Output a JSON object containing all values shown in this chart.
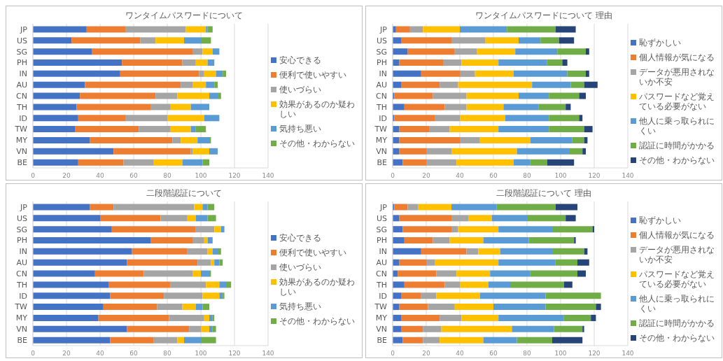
{
  "chart_data": [
    {
      "type": "bar",
      "orientation": "horizontal",
      "stacked": true,
      "title": "ワンタイムパスワードについて",
      "categories": [
        "JP",
        "US",
        "SG",
        "PH",
        "IN",
        "AU",
        "CN",
        "TH",
        "ID",
        "TW",
        "MY",
        "VN",
        "BE"
      ],
      "xlim": [
        0,
        140
      ],
      "xticks": [
        0,
        20,
        40,
        60,
        80,
        100,
        120,
        140
      ],
      "grid": "x",
      "legend": "right",
      "series": [
        {
          "name": "安心できる",
          "color": "#4472c4",
          "values": [
            32,
            23,
            35,
            53,
            52,
            31,
            28,
            26,
            27,
            25,
            34,
            48,
            27
          ]
        },
        {
          "name": "便利で使いやすい",
          "color": "#ed7d31",
          "values": [
            23,
            41,
            60,
            36,
            47,
            57,
            45,
            44,
            28,
            38,
            49,
            46,
            27
          ]
        },
        {
          "name": "使いづらい",
          "color": "#a5a5a5",
          "values": [
            36,
            9,
            6,
            8,
            3,
            7,
            13,
            12,
            25,
            19,
            5,
            1,
            18
          ]
        },
        {
          "name": "効果があるのか疑わしい",
          "color": "#ffc000",
          "values": [
            12,
            17,
            6,
            7,
            7,
            8,
            19,
            12,
            22,
            12,
            10,
            10,
            17
          ]
        },
        {
          "name": "気持ち悪い",
          "color": "#5b9bd5",
          "values": [
            1,
            10,
            4,
            4,
            4,
            5,
            5,
            11,
            9,
            3,
            7,
            5,
            12
          ]
        },
        {
          "name": "その他・わからない",
          "color": "#70ad47",
          "values": [
            3,
            6,
            0,
            0,
            2,
            2,
            2,
            0,
            0,
            6,
            1,
            0,
            4
          ]
        }
      ]
    },
    {
      "type": "bar",
      "orientation": "horizontal",
      "stacked": true,
      "title": "ワンタイムパスワードについて  理由",
      "categories": [
        "JP",
        "US",
        "SG",
        "PH",
        "IN",
        "AU",
        "CN",
        "TH",
        "ID",
        "TW",
        "MY",
        "VN",
        "BE"
      ],
      "xlim": [
        0,
        140
      ],
      "xticks": [
        0,
        20,
        40,
        60,
        80,
        100,
        120,
        140
      ],
      "grid": "x",
      "legend": "right",
      "series": [
        {
          "name": "恥ずかしい",
          "color": "#4472c4",
          "values": [
            2,
            5,
            9,
            4,
            17,
            5,
            1,
            7,
            1,
            4,
            4,
            4,
            6
          ]
        },
        {
          "name": "個人情報が気になる",
          "color": "#ed7d31",
          "values": [
            8,
            30,
            28,
            26,
            23,
            23,
            23,
            24,
            24,
            18,
            36,
            16,
            14
          ]
        },
        {
          "name": "データが悪用されないか不安",
          "color": "#a5a5a5",
          "values": [
            8,
            20,
            13,
            11,
            9,
            11,
            20,
            13,
            15,
            12,
            12,
            15,
            18
          ]
        },
        {
          "name": "パスワードなど覚えている必要がない",
          "color": "#ffc000",
          "values": [
            22,
            20,
            23,
            22,
            23,
            44,
            31,
            22,
            27,
            29,
            30,
            39,
            34
          ]
        },
        {
          "name": "他人に乗っ取られにくい",
          "color": "#5b9bd5",
          "values": [
            28,
            13,
            25,
            29,
            32,
            23,
            18,
            21,
            26,
            30,
            25,
            31,
            10
          ]
        },
        {
          "name": "認証に時間がかかる",
          "color": "#70ad47",
          "values": [
            29,
            11,
            17,
            9,
            11,
            8,
            18,
            16,
            18,
            21,
            7,
            8,
            10
          ]
        },
        {
          "name": "その他・わからない",
          "color": "#264478",
          "values": [
            12,
            9,
            2,
            3,
            2,
            8,
            4,
            3,
            2,
            5,
            2,
            2,
            16
          ]
        }
      ]
    },
    {
      "type": "bar",
      "orientation": "horizontal",
      "stacked": true,
      "title": "二段階認証について",
      "categories": [
        "JP",
        "US",
        "SG",
        "PH",
        "IN",
        "AU",
        "CN",
        "TH",
        "ID",
        "TW",
        "MY",
        "VN",
        "BE"
      ],
      "xlim": [
        0,
        140
      ],
      "xticks": [
        0,
        20,
        40,
        60,
        80,
        100,
        120,
        140
      ],
      "grid": "x",
      "legend": "right",
      "series": [
        {
          "name": "安心できる",
          "color": "#4472c4",
          "values": [
            34,
            40,
            47,
            70,
            59,
            56,
            37,
            45,
            46,
            42,
            39,
            56,
            46
          ]
        },
        {
          "name": "便利で使いやすい",
          "color": "#ed7d31",
          "values": [
            14,
            36,
            50,
            25,
            33,
            42,
            29,
            37,
            32,
            32,
            42,
            37,
            26
          ]
        },
        {
          "name": "使いづらい",
          "color": "#a5a5a5",
          "values": [
            48,
            16,
            11,
            7,
            12,
            8,
            29,
            21,
            23,
            15,
            21,
            7,
            14
          ]
        },
        {
          "name": "効果があるのか疑わしい",
          "color": "#ffc000",
          "values": [
            5,
            5,
            4,
            2,
            3,
            2,
            5,
            8,
            10,
            8,
            3,
            5,
            4
          ]
        },
        {
          "name": "気持ち悪い",
          "color": "#5b9bd5",
          "values": [
            3,
            7,
            2,
            3,
            3,
            3,
            5,
            4,
            2,
            4,
            2,
            2,
            10
          ]
        },
        {
          "name": "その他・わからない",
          "color": "#70ad47",
          "values": [
            4,
            5,
            0,
            0,
            2,
            2,
            1,
            3,
            1,
            4,
            1,
            2,
            9
          ]
        }
      ]
    },
    {
      "type": "bar",
      "orientation": "horizontal",
      "stacked": true,
      "title": "二段階認証について  理由",
      "categories": [
        "JP",
        "US",
        "SG",
        "PH",
        "IN",
        "AU",
        "CN",
        "TH",
        "ID",
        "TW",
        "MY",
        "VN",
        "BE"
      ],
      "xlim": [
        0,
        140
      ],
      "xticks": [
        0,
        20,
        40,
        60,
        80,
        100,
        120,
        140
      ],
      "grid": "x",
      "legend": "right",
      "series": [
        {
          "name": "恥ずかしい",
          "color": "#4472c4",
          "values": [
            1,
            4,
            6,
            7,
            17,
            4,
            3,
            7,
            5,
            4,
            5,
            5,
            6
          ]
        },
        {
          "name": "個人情報が気になる",
          "color": "#ed7d31",
          "values": [
            8,
            31,
            29,
            17,
            27,
            16,
            23,
            24,
            12,
            17,
            23,
            13,
            12
          ]
        },
        {
          "name": "データが悪用されないか不安",
          "color": "#a5a5a5",
          "values": [
            6,
            10,
            4,
            10,
            7,
            5,
            12,
            9,
            9,
            16,
            13,
            11,
            10
          ]
        },
        {
          "name": "パスワードなど覚えている必要がない",
          "color": "#ffc000",
          "values": [
            20,
            14,
            24,
            20,
            13,
            38,
            20,
            17,
            26,
            23,
            22,
            42,
            26
          ]
        },
        {
          "name": "他人に乗っ取られにくい",
          "color": "#5b9bd5",
          "values": [
            27,
            21,
            32,
            27,
            31,
            34,
            24,
            13,
            39,
            31,
            39,
            25,
            20
          ]
        },
        {
          "name": "認証に時間がかかる",
          "color": "#70ad47",
          "values": [
            35,
            23,
            24,
            27,
            19,
            13,
            28,
            32,
            33,
            30,
            16,
            17,
            21
          ]
        },
        {
          "name": "その他・わからない",
          "color": "#264478",
          "values": [
            13,
            6,
            1,
            1,
            2,
            7,
            5,
            5,
            0,
            3,
            3,
            1,
            18
          ]
        }
      ]
    }
  ]
}
